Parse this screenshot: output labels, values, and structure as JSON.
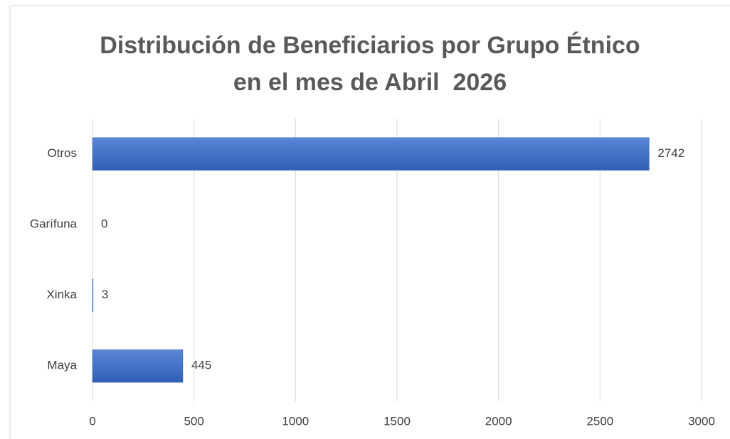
{
  "chart_data": {
    "type": "bar",
    "orientation": "horizontal",
    "title": "Distribución de Beneficiarios por Grupo Étnico en el mes de Abril  2026",
    "categories": [
      "Otros",
      "Garífuna",
      "Xinka",
      "Maya"
    ],
    "values": [
      2742,
      0,
      3,
      445
    ],
    "color": "#4472c4",
    "xlim": [
      0,
      3000
    ],
    "xticks": [
      0,
      500,
      1000,
      1500,
      2000,
      2500,
      3000
    ],
    "grid": true
  }
}
